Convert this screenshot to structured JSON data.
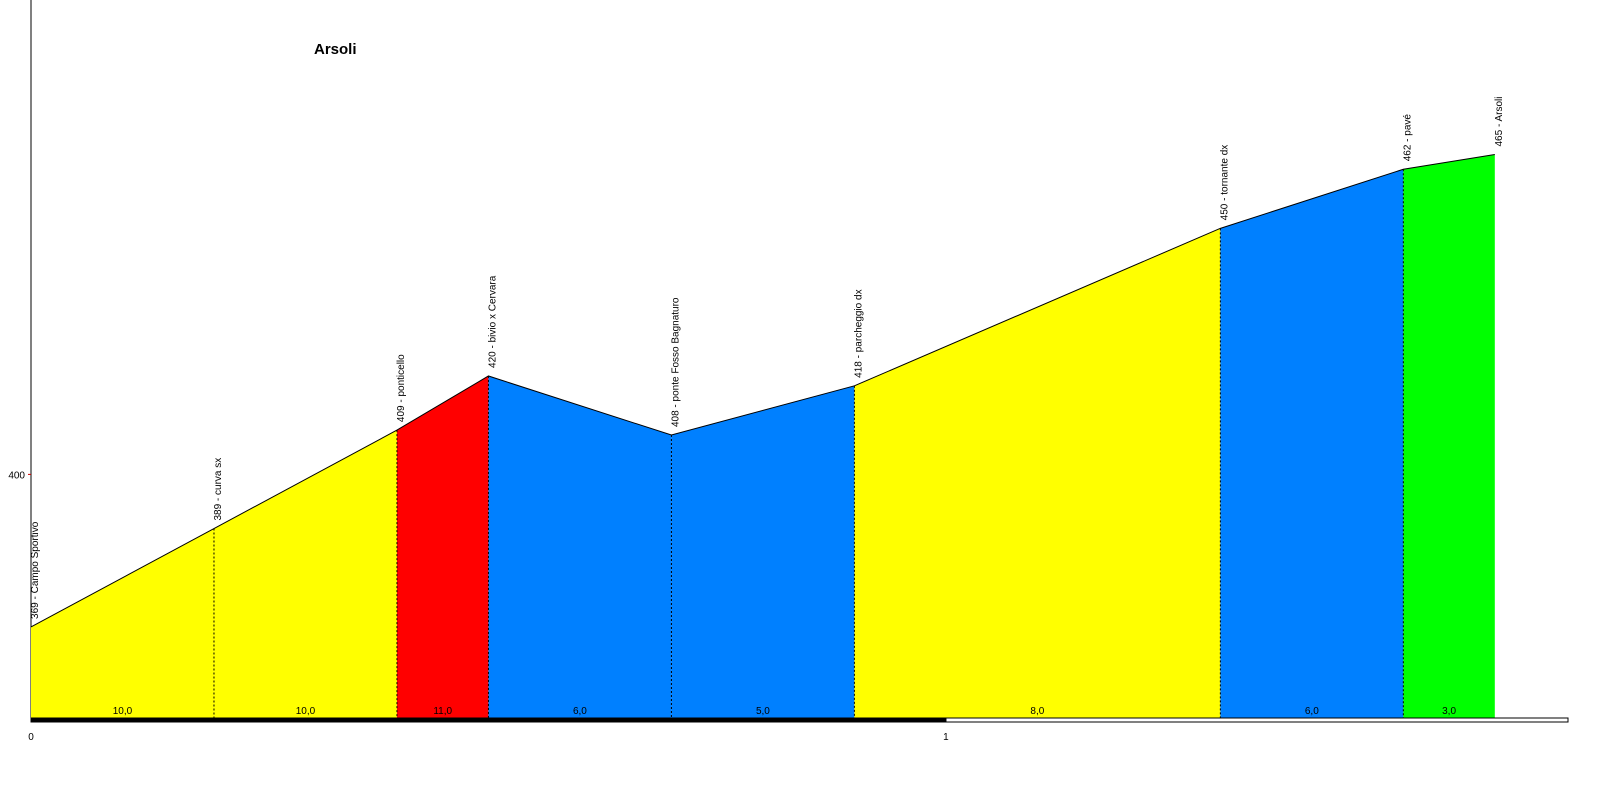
{
  "chart_data": {
    "type": "profile",
    "title": "Arsoli",
    "x": [
      0,
      0.2,
      0.4,
      0.5,
      0.7,
      0.9,
      1.3,
      1.5,
      1.6
    ],
    "values": [
      369,
      389,
      409,
      420,
      408,
      418,
      450,
      462,
      465
    ],
    "point_labels": [
      "369 - Campo Sportivo",
      "389 - curva sx",
      "409 - ponticello",
      "420 - bivio x Cervara",
      "408 - ponte Fosso Bagnaturo",
      "418 - parcheggio dx",
      "450 - tornante dx",
      "462 - pavé",
      "465 - Arsoli"
    ],
    "gradient_labels": [
      "10,0",
      "10,0",
      "11,0",
      "6,0",
      "5,0",
      "8,0",
      "6,0",
      "3,0"
    ],
    "segment_colors": [
      "#ffff00",
      "#ffff00",
      "#ff0000",
      "#0080ff",
      "#0080ff",
      "#ffff00",
      "#0080ff",
      "#00ff00"
    ],
    "xlim": [
      0,
      1.68
    ],
    "xticks": [
      0,
      1
    ],
    "ylim": [
      350.5,
      496.4
    ],
    "yticks": [
      400
    ]
  }
}
